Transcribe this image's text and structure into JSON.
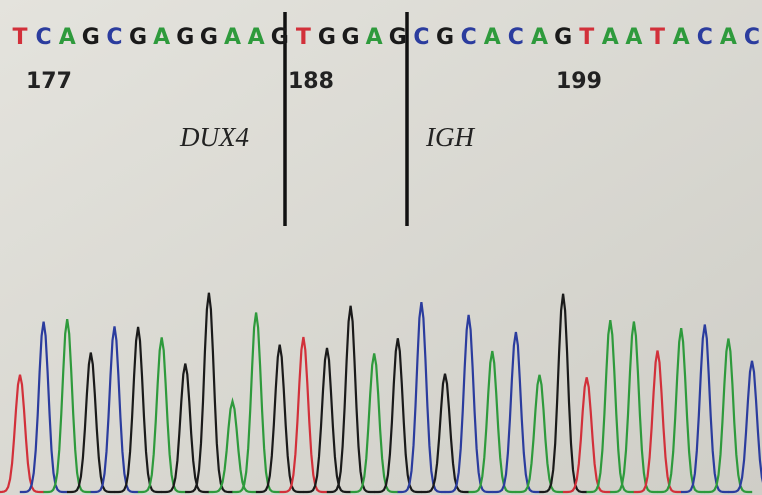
{
  "sequence": {
    "bases": [
      "T",
      "C",
      "A",
      "G",
      "C",
      "G",
      "A",
      "G",
      "G",
      "A",
      "A",
      "G",
      "T",
      "G",
      "G",
      "A",
      "G",
      "C",
      "G",
      "C",
      "A",
      "C",
      "A",
      "G",
      "T",
      "A",
      "A",
      "T",
      "A",
      "C",
      "A",
      "C"
    ],
    "base_colors": {
      "A": "#2e9a3c",
      "C": "#2b3c9e",
      "G": "#1a1a1a",
      "T": "#d2303a"
    },
    "positions": [
      "177",
      "188",
      "199"
    ]
  },
  "annotations": {
    "left_gene": "DUX4",
    "right_gene": "IGH"
  }
}
